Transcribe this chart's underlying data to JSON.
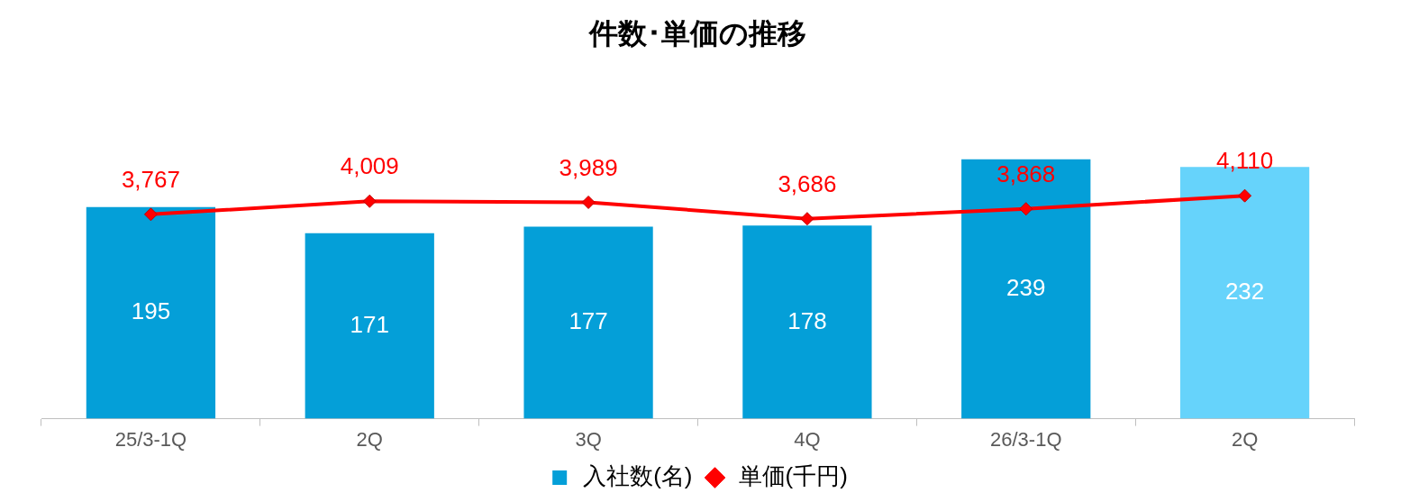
{
  "chart_data": {
    "type": "bar",
    "title": "件数･単価の推移",
    "categories": [
      "25/3-1Q",
      "2Q",
      "3Q",
      "4Q",
      "26/3-1Q",
      "2Q"
    ],
    "series": [
      {
        "name": "入社数(名)",
        "type": "bar",
        "colors": [
          "#049fd8",
          "#049fd8",
          "#049fd8",
          "#049fd8",
          "#049fd8",
          "#66d3fb"
        ],
        "color": "#049fd8",
        "values": [
          195,
          171,
          177,
          178,
          239,
          232
        ]
      },
      {
        "name": "単価(千円)",
        "type": "line",
        "axis": "y2",
        "color": "#ff0000",
        "marker": "diamond",
        "values": [
          3767,
          4009,
          3989,
          3686,
          3868,
          4110
        ],
        "value_labels": [
          "3,767",
          "4,009",
          "3,989",
          "3,686",
          "3,868",
          "4,110"
        ]
      }
    ],
    "tick_labels": "x",
    "data_labels": true,
    "legend": "bottom",
    "grid": false
  }
}
